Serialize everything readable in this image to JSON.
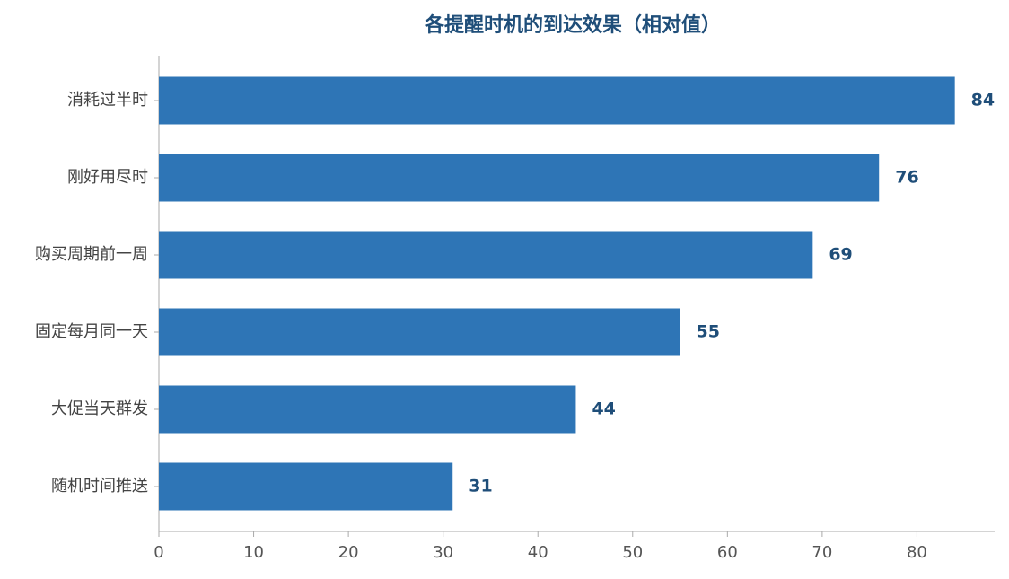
{
  "chart_data": {
    "type": "bar",
    "orientation": "horizontal",
    "title": "各提醒时机的到达效果（相对值）",
    "categories": [
      "消耗过半时",
      "刚好用尽时",
      "购买周期前一周",
      "固定每月同一天",
      "大促当天群发",
      "随机时间推送"
    ],
    "values": [
      84,
      76,
      69,
      55,
      44,
      31
    ],
    "color": "#2e75b6",
    "xlim": [
      0,
      88.2
    ],
    "xticks": [
      0,
      10,
      20,
      30,
      40,
      50,
      60,
      70,
      80
    ],
    "grid": false
  }
}
